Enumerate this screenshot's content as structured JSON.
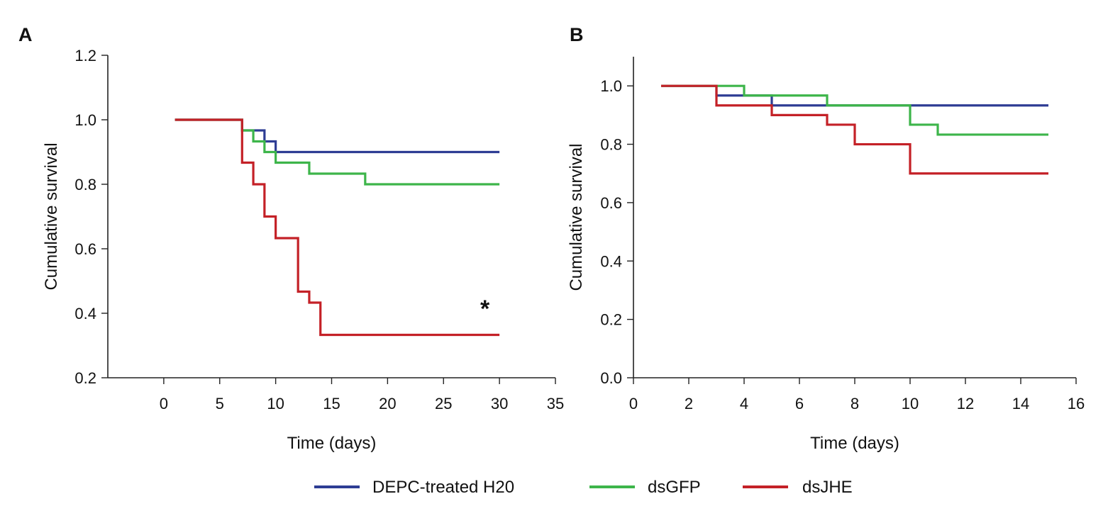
{
  "legend": [
    {
      "label": "DEPC-treated H20",
      "color": "#2e3d94"
    },
    {
      "label": "dsGFP",
      "color": "#3db54a"
    },
    {
      "label": "dsJHE",
      "color": "#c42127"
    }
  ],
  "chart_data": [
    {
      "type": "line",
      "step": true,
      "panel_label": "A",
      "title": "",
      "xlabel": "Time (days)",
      "ylabel": "Cumulative survival",
      "xlim": [
        -5,
        35
      ],
      "ylim": [
        0.2,
        1.2
      ],
      "xticks": [
        0,
        5,
        10,
        15,
        20,
        25,
        30,
        35
      ],
      "yticks": [
        0.2,
        0.4,
        0.6,
        0.8,
        1.0,
        1.2
      ],
      "xtick_labels": [
        "0",
        "5",
        "10",
        "15",
        "20",
        "25",
        "30",
        "35"
      ],
      "ytick_labels": [
        "0.2",
        "0.4",
        "0.6",
        "0.8",
        "1.0",
        "1.2"
      ],
      "grid": false,
      "annotations": [
        {
          "text": "*",
          "x": 28.7,
          "y": 0.42
        }
      ],
      "series": [
        {
          "name": "DEPC-treated H20",
          "color": "#2e3d94",
          "x": [
            1,
            7,
            8,
            9,
            10,
            30
          ],
          "y": [
            1.0,
            0.967,
            0.967,
            0.933,
            0.9,
            0.9
          ]
        },
        {
          "name": "dsGFP",
          "color": "#3db54a",
          "x": [
            1,
            7,
            8,
            9,
            10,
            13,
            18,
            30
          ],
          "y": [
            1.0,
            0.967,
            0.933,
            0.9,
            0.867,
            0.833,
            0.8,
            0.8
          ]
        },
        {
          "name": "dsJHE",
          "color": "#c42127",
          "x": [
            1,
            7,
            8,
            9,
            10,
            12,
            13,
            14,
            30
          ],
          "y": [
            1.0,
            0.867,
            0.8,
            0.7,
            0.633,
            0.467,
            0.433,
            0.333,
            0.333
          ]
        }
      ]
    },
    {
      "type": "line",
      "step": true,
      "panel_label": "B",
      "title": "",
      "xlabel": "Time (days)",
      "ylabel": "Cumulative survival",
      "xlim": [
        0,
        16
      ],
      "ylim": [
        0.0,
        1.1
      ],
      "xticks": [
        0,
        2,
        4,
        6,
        8,
        10,
        12,
        14,
        16
      ],
      "yticks": [
        0.0,
        0.2,
        0.4,
        0.6,
        0.8,
        1.0
      ],
      "xtick_labels": [
        "0",
        "2",
        "4",
        "6",
        "8",
        "10",
        "12",
        "14",
        "16"
      ],
      "ytick_labels": [
        "0.0",
        "0.2",
        "0.4",
        "0.6",
        "0.8",
        "1.0"
      ],
      "grid": false,
      "annotations": [],
      "series": [
        {
          "name": "DEPC-treated H20",
          "color": "#2e3d94",
          "x": [
            1,
            3,
            5,
            15
          ],
          "y": [
            1.0,
            0.967,
            0.933,
            0.933
          ]
        },
        {
          "name": "dsGFP",
          "color": "#3db54a",
          "x": [
            1,
            4,
            7,
            10,
            11,
            15
          ],
          "y": [
            1.0,
            0.967,
            0.933,
            0.867,
            0.833,
            0.833
          ]
        },
        {
          "name": "dsJHE",
          "color": "#c42127",
          "x": [
            1,
            3,
            5,
            7,
            8,
            10,
            15
          ],
          "y": [
            1.0,
            0.933,
            0.9,
            0.867,
            0.8,
            0.7,
            0.7
          ]
        }
      ]
    }
  ]
}
